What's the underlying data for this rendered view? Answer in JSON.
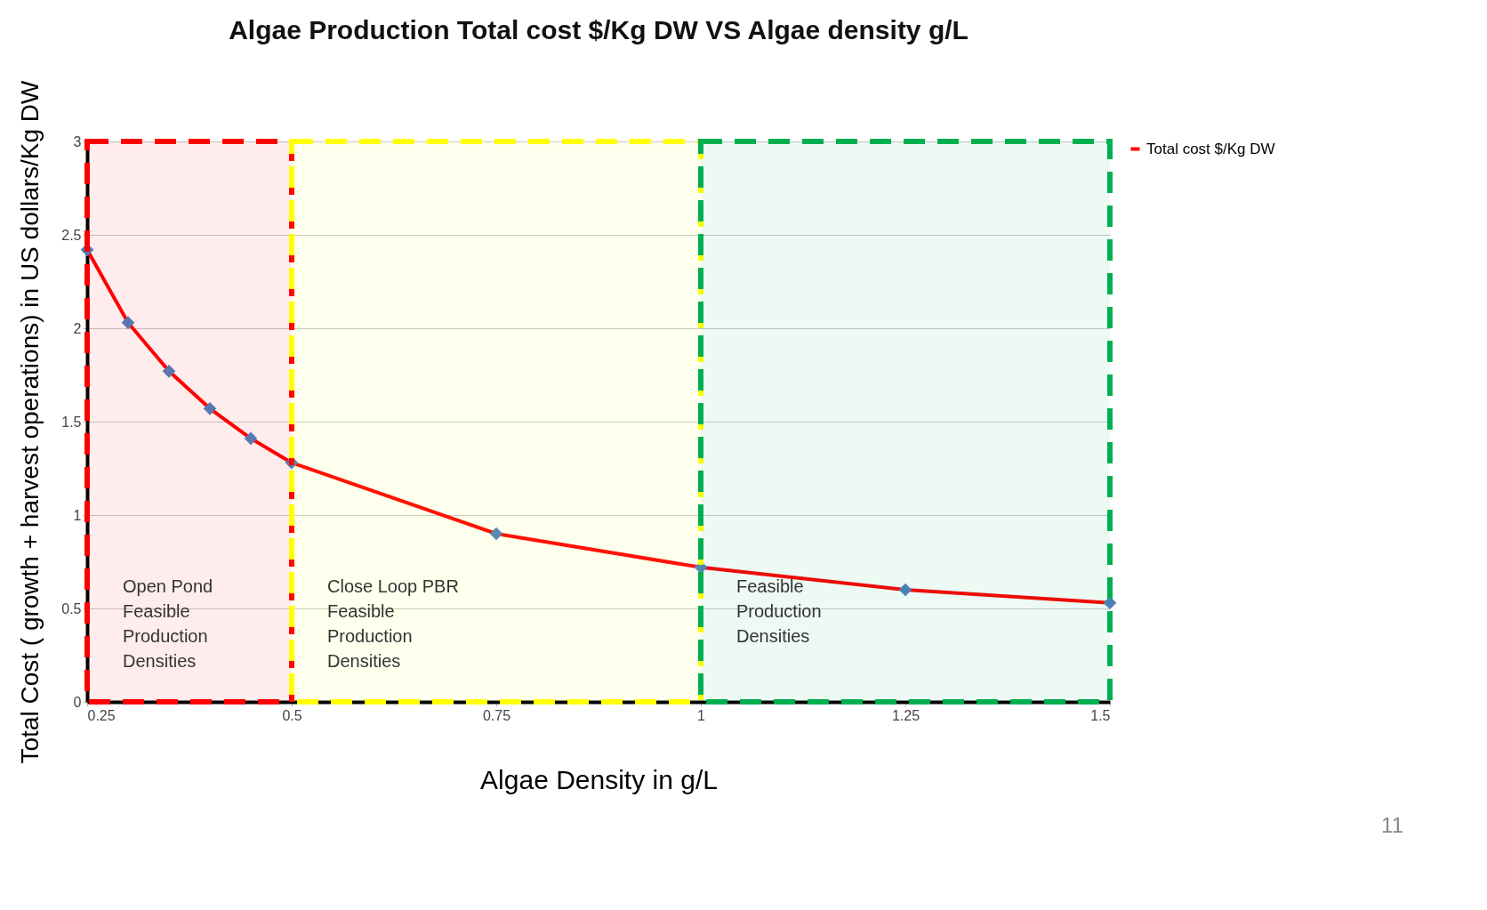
{
  "chart_data": {
    "type": "line",
    "title": "Algae Production Total cost $/Kg DW VS Algae density g/L",
    "xlabel": "Algae Density in g/L",
    "ylabel": "Total Cost ( growth + harvest operations) in US dollars/Kg DW",
    "x": [
      0.25,
      0.3,
      0.35,
      0.4,
      0.45,
      0.5,
      0.75,
      1.0,
      1.25,
      1.5
    ],
    "series": [
      {
        "name": "Total cost $/Kg DW",
        "color": "#ff0000",
        "values": [
          2.42,
          2.03,
          1.77,
          1.57,
          1.41,
          1.28,
          0.9,
          0.72,
          0.6,
          0.53
        ]
      }
    ],
    "xlim": [
      0.25,
      1.5
    ],
    "xticks": [
      0.25,
      0.5,
      0.75,
      1,
      1.25,
      1.5
    ],
    "ylim": [
      0,
      3
    ],
    "yticks": [
      0,
      0.5,
      1,
      1.5,
      2,
      2.5,
      3
    ],
    "bands": [
      {
        "axis": "x",
        "from": 0.25,
        "to": 0.5,
        "label": "Open Pond\nFeasible\nProduction\nDensities",
        "color": "#ff0000"
      },
      {
        "axis": "x",
        "from": 0.5,
        "to": 1.0,
        "label": "Close Loop PBR\nFeasible\nProduction\nDensities",
        "color": "#ffff00"
      },
      {
        "axis": "x",
        "from": 1.0,
        "to": 1.5,
        "label": "Feasible\nProduction\nDensities",
        "color": "#00b050"
      }
    ],
    "annotations": [
      "11"
    ],
    "grid": "y",
    "legend": "right",
    "marker": "diamond",
    "line_style": "solid"
  }
}
